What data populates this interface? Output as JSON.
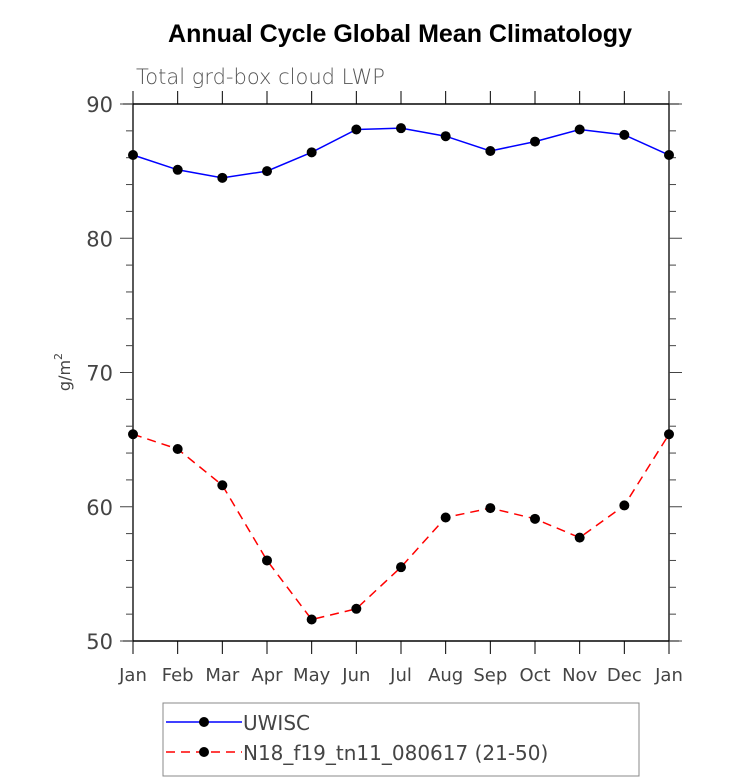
{
  "chart_data": {
    "type": "line",
    "title": "Annual Cycle Global Mean Climatology",
    "subtitle": "Total grd-box cloud LWP",
    "xlabel": "",
    "ylabel": "g/m",
    "ylabel_superscript": "2",
    "categories": [
      "Jan",
      "Feb",
      "Mar",
      "Apr",
      "May",
      "Jun",
      "Jul",
      "Aug",
      "Sep",
      "Oct",
      "Nov",
      "Dec",
      "Jan"
    ],
    "ylim": [
      50,
      90
    ],
    "yticks": [
      50,
      60,
      70,
      80,
      90
    ],
    "yminor_step": 2,
    "grid": false,
    "legend_position": "bottom",
    "series": [
      {
        "name": "UWISC",
        "color": "#0000ff",
        "line_style": "solid",
        "marker": "filled-circle",
        "values": [
          86.2,
          85.1,
          84.5,
          85.0,
          86.4,
          88.1,
          88.2,
          87.6,
          86.5,
          87.2,
          88.1,
          87.7,
          86.2
        ]
      },
      {
        "name": "N18_f19_tn11_080617 (21-50)",
        "color": "#ff0000",
        "line_style": "dashed",
        "marker": "filled-circle",
        "values": [
          65.4,
          64.3,
          61.6,
          56.0,
          51.6,
          52.4,
          55.5,
          59.2,
          59.9,
          59.1,
          57.7,
          60.1,
          65.4
        ]
      }
    ]
  }
}
